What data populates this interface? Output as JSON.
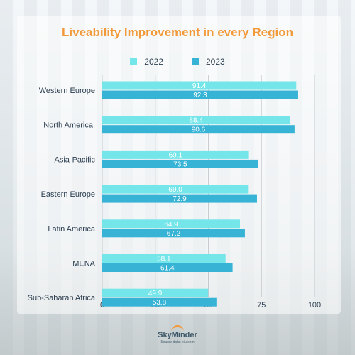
{
  "colors": {
    "series_2022": "#74e6ea",
    "series_2023": "#37b3d6",
    "title": "#f29a3a",
    "text": "#2c3e50"
  },
  "chart_data": {
    "type": "bar",
    "orientation": "horizontal",
    "title": "Liveability Improvement in every Region",
    "categories": [
      "Western Europe",
      "North America.",
      "Asia-Pacific",
      "Eastern Europe",
      "Latin America",
      "MENA",
      "Sub-Saharan Africa"
    ],
    "series": [
      {
        "name": "2022",
        "values": [
          91.4,
          88.4,
          69.1,
          69.0,
          64.9,
          58.1,
          49.9
        ]
      },
      {
        "name": "2023",
        "values": [
          92.3,
          90.6,
          73.5,
          72.9,
          67.2,
          61.4,
          53.8
        ]
      }
    ],
    "x_ticks": [
      "0",
      "25",
      "50",
      "75",
      "100"
    ],
    "xlim": [
      0,
      100
    ],
    "grid": "vertical",
    "legend": "top-center"
  },
  "footer": {
    "brand": "SkyMinder",
    "source": "Source data: eiu.com"
  }
}
